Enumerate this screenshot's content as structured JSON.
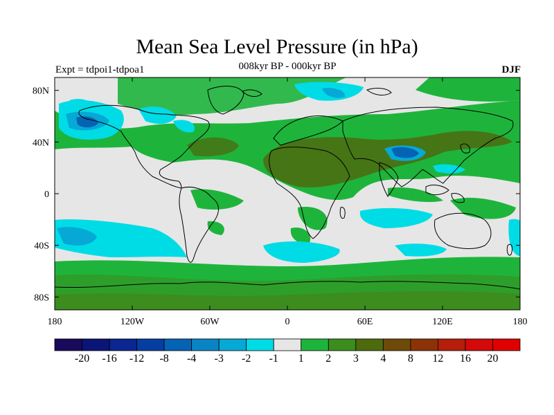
{
  "title": "Mean Sea Level Pressure (in hPa)",
  "subtitle": "008kyr BP - 000kyr BP",
  "experiment": "Expt = tdpoi1-tdpoa1",
  "season": "DJF",
  "colors": {
    "background": "#e6e6e6",
    "land_line": "#000000"
  },
  "chart_data": {
    "type": "heatmap",
    "title": "Mean Sea Level Pressure (in hPa)",
    "lon_range": [
      -180,
      180
    ],
    "lat_range": [
      -90,
      90
    ],
    "x_ticks": [
      {
        "value": -180,
        "label": "180"
      },
      {
        "value": -120,
        "label": "120W"
      },
      {
        "value": -60,
        "label": "60W"
      },
      {
        "value": 0,
        "label": "0"
      },
      {
        "value": 60,
        "label": "60E"
      },
      {
        "value": 120,
        "label": "120E"
      },
      {
        "value": 180,
        "label": "180"
      }
    ],
    "y_ticks": [
      {
        "value": 80,
        "label": "80N"
      },
      {
        "value": 40,
        "label": "40N"
      },
      {
        "value": 0,
        "label": "0"
      },
      {
        "value": -40,
        "label": "40S"
      },
      {
        "value": -80,
        "label": "80S"
      }
    ],
    "colorbar": {
      "labels": [
        "-20",
        "-16",
        "-12",
        "-8",
        "-4",
        "-3",
        "-2",
        "-1",
        "1",
        "2",
        "3",
        "4",
        "8",
        "12",
        "16",
        "20"
      ],
      "colors": [
        "#1a0a5c",
        "#0b1577",
        "#0a2690",
        "#053ea1",
        "#0563b3",
        "#0a84c4",
        "#06a8d6",
        "#00dce6",
        "#e6e6e6",
        "#1eb43c",
        "#3c8c1e",
        "#4e6a0f",
        "#6e4a08",
        "#8c3208",
        "#b41e0a",
        "#d20a0a",
        "#e00000"
      ]
    }
  }
}
